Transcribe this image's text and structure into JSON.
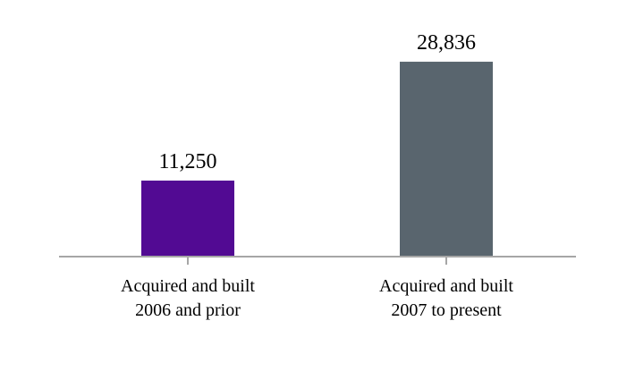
{
  "chart_data": {
    "type": "bar",
    "categories": [
      [
        "Acquired and built",
        "2006 and prior"
      ],
      [
        "Acquired and built",
        "2007 to present"
      ]
    ],
    "values": [
      11250,
      28836
    ],
    "data_labels": [
      "11,250",
      "28,836"
    ],
    "colors": [
      "#520a93",
      "#59656e"
    ],
    "axis_color": "#a6a6a6",
    "title": "",
    "xlabel": "",
    "ylabel": "",
    "ylim": [
      0,
      34000
    ],
    "grid": false,
    "legend": "none"
  }
}
